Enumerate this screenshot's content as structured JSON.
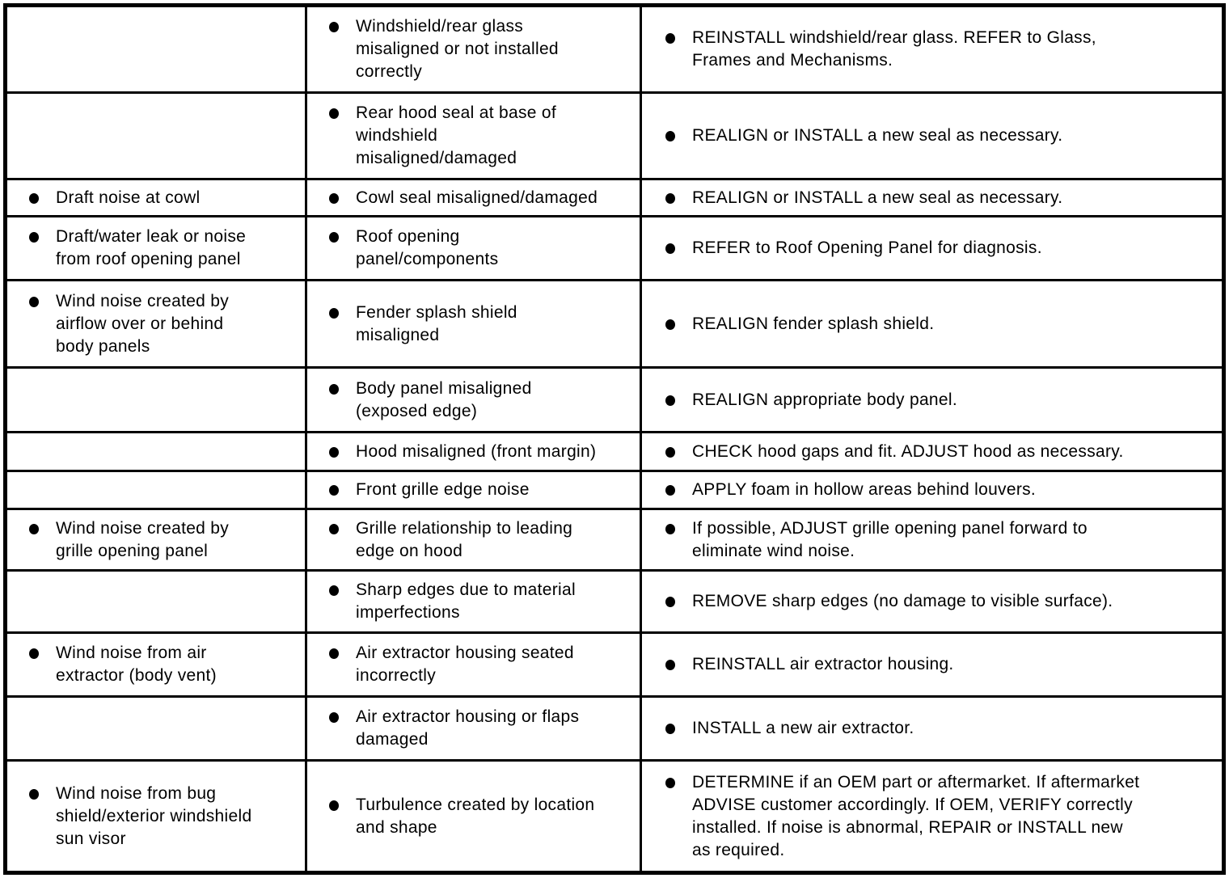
{
  "colors": {
    "background": "#ffffff",
    "border": "#000000",
    "text": "#000000"
  },
  "list_marker": "filled-circle-bullet",
  "table": {
    "columns": [
      "symptom",
      "possible_cause",
      "action"
    ],
    "rows": [
      {
        "symptom": "",
        "cause": "Windshield/rear glass\nmisaligned or not installed\ncorrectly",
        "action": "REINSTALL windshield/rear glass. REFER to Glass,\nFrames and Mechanisms."
      },
      {
        "symptom": "",
        "cause": "Rear hood seal at base of\nwindshield\nmisaligned/damaged",
        "action": "REALIGN or INSTALL a new seal as necessary."
      },
      {
        "symptom": "Draft noise at cowl",
        "cause": "Cowl seal misaligned/damaged",
        "action": "REALIGN or INSTALL a new seal as necessary."
      },
      {
        "symptom": "Draft/water leak or noise\nfrom roof opening panel",
        "cause": "Roof opening\npanel/components",
        "action": "REFER to Roof Opening Panel for diagnosis."
      },
      {
        "symptom": "Wind noise created by\nairflow over or behind\nbody panels",
        "cause": "Fender splash shield\nmisaligned",
        "action": "REALIGN fender splash shield."
      },
      {
        "symptom": "",
        "cause": "Body panel misaligned\n(exposed edge)",
        "action": "REALIGN appropriate body panel."
      },
      {
        "symptom": "",
        "cause": "Hood misaligned (front margin)",
        "action": "CHECK hood gaps and fit. ADJUST hood as necessary."
      },
      {
        "symptom": "",
        "cause": "Front grille edge noise",
        "action": "APPLY foam in hollow areas behind louvers."
      },
      {
        "symptom": "Wind noise created by\ngrille opening panel",
        "cause": "Grille relationship to leading\nedge on hood",
        "action": "If possible, ADJUST grille opening panel forward to\neliminate wind noise."
      },
      {
        "symptom": "",
        "cause": "Sharp edges due to material\nimperfections",
        "action": "REMOVE sharp edges (no damage to visible surface)."
      },
      {
        "symptom": "Wind noise from air\nextractor (body vent)",
        "cause": "Air extractor housing seated\nincorrectly",
        "action": "REINSTALL air extractor housing."
      },
      {
        "symptom": "",
        "cause": "Air extractor housing or flaps\ndamaged",
        "action": "INSTALL a new air extractor."
      },
      {
        "symptom": "Wind noise from bug\nshield/exterior windshield\nsun visor",
        "cause": "Turbulence created by location\nand shape",
        "action": "DETERMINE if an OEM part or aftermarket. If aftermarket\nADVISE customer accordingly. If OEM, VERIFY correctly\ninstalled. If noise is abnormal, REPAIR or INSTALL new\nas required."
      }
    ]
  }
}
